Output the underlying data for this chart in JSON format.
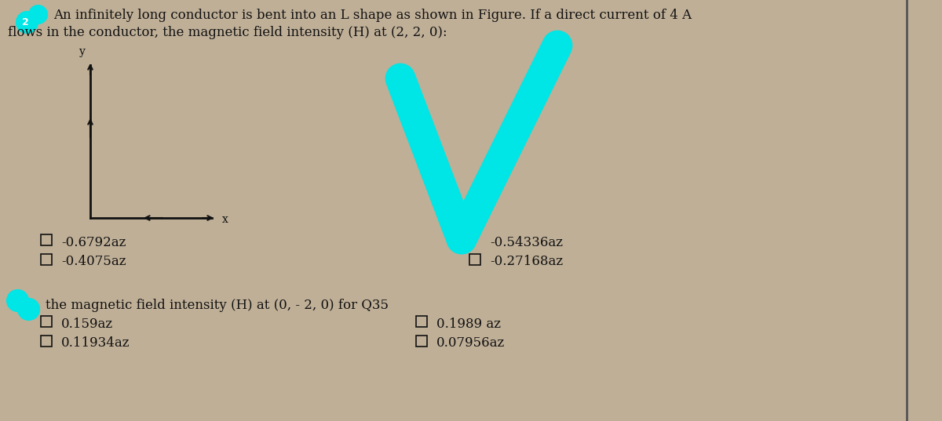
{
  "bg_color": "#bfaf97",
  "title_line1": "An infinitely long conductor is bent into an L shape as shown in Figure. If a direct current of 4 A",
  "title_line2": "flows in the conductor, the magnetic field intensity (H) at (2, 2, 0):",
  "q1_options_left_col": [
    "-0.6792az",
    "-0.4075az"
  ],
  "q1_options_right_col": [
    "-0.54336az",
    "-0.27168az"
  ],
  "q2_label": "the magnetic field intensity (H) at (0, - 2, 0) for Q35",
  "q2_options_left_col": [
    "0.159az",
    "0.11934az"
  ],
  "q2_options_right_col": [
    "0.1989 az",
    "0.07956az"
  ],
  "checkmark_color": "#00e5e5",
  "text_color": "#111111",
  "border_color": "#444444",
  "font_size": 12,
  "axis_font_size": 10
}
